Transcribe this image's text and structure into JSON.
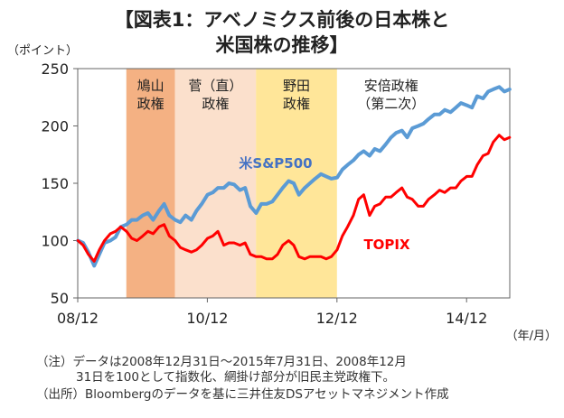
{
  "title_line1": "【図表1：アベノミクス前後の日本株と",
  "title_line2": "米国株の推移】",
  "notes": {
    "line1": "（注）データは2008年12月31日～2015年7月31日、2008年12月",
    "line2": "31日を100として指数化、網掛け部分が旧民主党政権下。",
    "line3": "（出所）Bloombergのデータを基に三井住友DSアセットマネジメント作成"
  },
  "colors": {
    "sp500": "#5b9bd5",
    "topix": "#ff0000",
    "hatoyama": "#f4b183",
    "kan": "#fbe0cc",
    "noda": "#ffe699",
    "sp500_label": "#4472c4"
  },
  "chart_data": {
    "type": "line",
    "ylabel": "（ポイント）",
    "xlabel": "（年/月）",
    "ylim": [
      50,
      250
    ],
    "yticks": [
      50,
      100,
      150,
      200,
      250
    ],
    "xlim": [
      2008.9167,
      2015.5833
    ],
    "xticks": [
      {
        "label": "08/12",
        "value": 2008.9167
      },
      {
        "label": "10/12",
        "value": 2010.9167
      },
      {
        "label": "12/12",
        "value": 2012.9167
      },
      {
        "label": "14/12",
        "value": 2014.9167
      }
    ],
    "periods": [
      {
        "label": "鳩山\n政権",
        "start": 2009.6667,
        "end": 2010.4167,
        "color_key": "hatoyama"
      },
      {
        "label": "菅（直）\n政権",
        "start": 2010.4167,
        "end": 2011.6667,
        "color_key": "kan"
      },
      {
        "label": "野田\n政権",
        "start": 2011.6667,
        "end": 2012.9167,
        "color_key": "noda"
      },
      {
        "label": "安倍政権\n（第二次）",
        "start": 2012.9167,
        "end": null,
        "color_key": null
      }
    ],
    "series": [
      {
        "name": "米S&P500",
        "color_key": "sp500",
        "points": [
          [
            2008.92,
            100
          ],
          [
            2009.0,
            98
          ],
          [
            2009.08,
            90
          ],
          [
            2009.17,
            78
          ],
          [
            2009.25,
            88
          ],
          [
            2009.33,
            98
          ],
          [
            2009.42,
            100
          ],
          [
            2009.5,
            103
          ],
          [
            2009.58,
            112
          ],
          [
            2009.67,
            114
          ],
          [
            2009.75,
            118
          ],
          [
            2009.83,
            118
          ],
          [
            2009.92,
            122
          ],
          [
            2010.0,
            124
          ],
          [
            2010.08,
            118
          ],
          [
            2010.17,
            126
          ],
          [
            2010.25,
            132
          ],
          [
            2010.33,
            122
          ],
          [
            2010.42,
            118
          ],
          [
            2010.5,
            116
          ],
          [
            2010.58,
            122
          ],
          [
            2010.67,
            118
          ],
          [
            2010.75,
            126
          ],
          [
            2010.83,
            132
          ],
          [
            2010.92,
            140
          ],
          [
            2011.0,
            142
          ],
          [
            2011.08,
            146
          ],
          [
            2011.17,
            146
          ],
          [
            2011.25,
            150
          ],
          [
            2011.33,
            149
          ],
          [
            2011.42,
            144
          ],
          [
            2011.5,
            146
          ],
          [
            2011.58,
            130
          ],
          [
            2011.67,
            124
          ],
          [
            2011.75,
            132
          ],
          [
            2011.83,
            132
          ],
          [
            2011.92,
            134
          ],
          [
            2012.0,
            140
          ],
          [
            2012.08,
            146
          ],
          [
            2012.17,
            152
          ],
          [
            2012.25,
            150
          ],
          [
            2012.33,
            140
          ],
          [
            2012.42,
            146
          ],
          [
            2012.5,
            150
          ],
          [
            2012.58,
            154
          ],
          [
            2012.67,
            158
          ],
          [
            2012.75,
            156
          ],
          [
            2012.83,
            154
          ],
          [
            2012.92,
            155
          ],
          [
            2013.0,
            162
          ],
          [
            2013.08,
            166
          ],
          [
            2013.17,
            170
          ],
          [
            2013.25,
            175
          ],
          [
            2013.33,
            178
          ],
          [
            2013.42,
            174
          ],
          [
            2013.5,
            180
          ],
          [
            2013.58,
            178
          ],
          [
            2013.67,
            184
          ],
          [
            2013.75,
            190
          ],
          [
            2013.83,
            194
          ],
          [
            2013.92,
            196
          ],
          [
            2014.0,
            190
          ],
          [
            2014.08,
            198
          ],
          [
            2014.17,
            200
          ],
          [
            2014.25,
            202
          ],
          [
            2014.33,
            206
          ],
          [
            2014.42,
            210
          ],
          [
            2014.5,
            210
          ],
          [
            2014.58,
            214
          ],
          [
            2014.67,
            212
          ],
          [
            2014.75,
            216
          ],
          [
            2014.83,
            220
          ],
          [
            2014.92,
            218
          ],
          [
            2015.0,
            216
          ],
          [
            2015.08,
            226
          ],
          [
            2015.17,
            224
          ],
          [
            2015.25,
            230
          ],
          [
            2015.33,
            232
          ],
          [
            2015.42,
            234
          ],
          [
            2015.5,
            230
          ],
          [
            2015.58,
            232
          ]
        ]
      },
      {
        "name": "TOPIX",
        "color_key": "topix",
        "points": [
          [
            2008.92,
            100
          ],
          [
            2009.0,
            96
          ],
          [
            2009.08,
            88
          ],
          [
            2009.17,
            82
          ],
          [
            2009.25,
            92
          ],
          [
            2009.33,
            100
          ],
          [
            2009.42,
            106
          ],
          [
            2009.5,
            108
          ],
          [
            2009.58,
            112
          ],
          [
            2009.67,
            108
          ],
          [
            2009.75,
            102
          ],
          [
            2009.83,
            100
          ],
          [
            2009.92,
            104
          ],
          [
            2010.0,
            108
          ],
          [
            2010.08,
            106
          ],
          [
            2010.17,
            112
          ],
          [
            2010.25,
            114
          ],
          [
            2010.33,
            104
          ],
          [
            2010.42,
            100
          ],
          [
            2010.5,
            94
          ],
          [
            2010.58,
            92
          ],
          [
            2010.67,
            90
          ],
          [
            2010.75,
            92
          ],
          [
            2010.83,
            96
          ],
          [
            2010.92,
            102
          ],
          [
            2011.0,
            104
          ],
          [
            2011.08,
            108
          ],
          [
            2011.17,
            96
          ],
          [
            2011.25,
            98
          ],
          [
            2011.33,
            98
          ],
          [
            2011.42,
            96
          ],
          [
            2011.5,
            98
          ],
          [
            2011.58,
            88
          ],
          [
            2011.67,
            86
          ],
          [
            2011.75,
            86
          ],
          [
            2011.83,
            84
          ],
          [
            2011.92,
            84
          ],
          [
            2012.0,
            88
          ],
          [
            2012.08,
            96
          ],
          [
            2012.17,
            100
          ],
          [
            2012.25,
            96
          ],
          [
            2012.33,
            86
          ],
          [
            2012.42,
            84
          ],
          [
            2012.5,
            86
          ],
          [
            2012.58,
            86
          ],
          [
            2012.67,
            86
          ],
          [
            2012.75,
            84
          ],
          [
            2012.83,
            86
          ],
          [
            2012.92,
            92
          ],
          [
            2013.0,
            104
          ],
          [
            2013.08,
            112
          ],
          [
            2013.17,
            122
          ],
          [
            2013.25,
            136
          ],
          [
            2013.33,
            140
          ],
          [
            2013.42,
            122
          ],
          [
            2013.5,
            130
          ],
          [
            2013.58,
            132
          ],
          [
            2013.67,
            138
          ],
          [
            2013.75,
            138
          ],
          [
            2013.83,
            142
          ],
          [
            2013.92,
            146
          ],
          [
            2014.0,
            138
          ],
          [
            2014.08,
            136
          ],
          [
            2014.17,
            130
          ],
          [
            2014.25,
            130
          ],
          [
            2014.33,
            136
          ],
          [
            2014.42,
            140
          ],
          [
            2014.5,
            144
          ],
          [
            2014.58,
            142
          ],
          [
            2014.67,
            146
          ],
          [
            2014.75,
            146
          ],
          [
            2014.83,
            152
          ],
          [
            2014.92,
            156
          ],
          [
            2015.0,
            156
          ],
          [
            2015.08,
            166
          ],
          [
            2015.17,
            174
          ],
          [
            2015.25,
            176
          ],
          [
            2015.33,
            186
          ],
          [
            2015.42,
            192
          ],
          [
            2015.5,
            188
          ],
          [
            2015.58,
            190
          ]
        ]
      }
    ],
    "annotations": [
      {
        "text": "米S&P500",
        "series": "米S&P500"
      },
      {
        "text": "TOPIX",
        "series": "TOPIX"
      }
    ]
  }
}
